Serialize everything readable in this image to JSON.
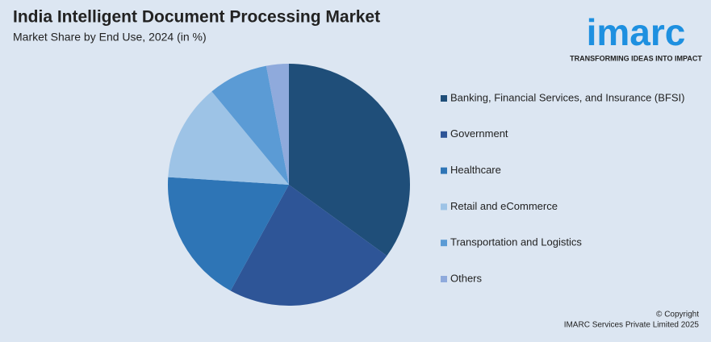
{
  "chart_data": {
    "type": "pie",
    "title": "India Intelligent Document Processing Market",
    "subtitle": "Market Share by End Use, 2024 (in %)",
    "categories": [
      "Banking, Financial Services, and Insurance (BFSI)",
      "Government",
      "Healthcare",
      "Retail and eCommerce",
      "Transportation and Logistics",
      "Others"
    ],
    "values": [
      35,
      23,
      18,
      13,
      8,
      3
    ],
    "colors": [
      "#1f4e79",
      "#2e5597",
      "#2e75b6",
      "#9dc3e6",
      "#5b9bd5",
      "#8faadc"
    ],
    "legend": "right"
  },
  "logo": {
    "name": "imarc",
    "tagline": "TRANSFORMING IDEAS INTO IMPACT"
  },
  "footer": {
    "copyright": "© Copyright",
    "owner": "IMARC Services Private Limited 2025"
  }
}
